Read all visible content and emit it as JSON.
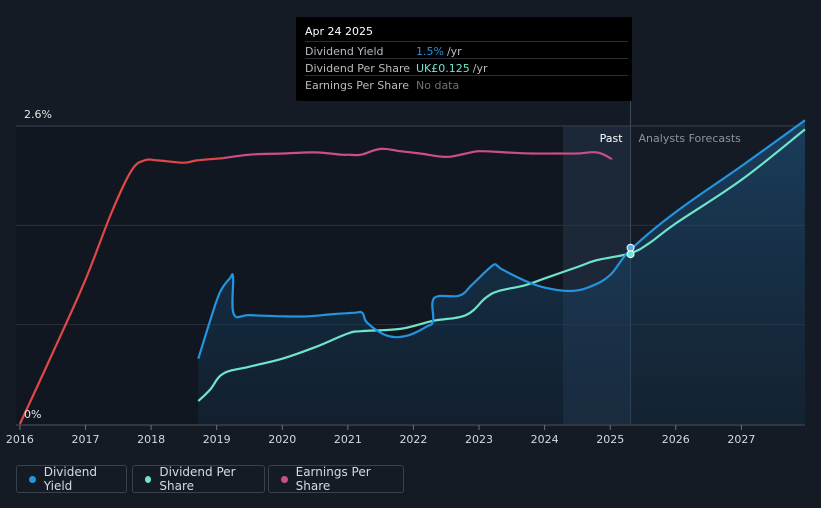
{
  "tooltip": {
    "date": "Apr 24 2025",
    "rows": [
      {
        "label": "Dividend Yield",
        "value": "1.5%",
        "unit": "/yr",
        "color": "#2394df"
      },
      {
        "label": "Dividend Per Share",
        "value": "UK£0.125",
        "unit": "/yr",
        "color": "#6fe5cb"
      },
      {
        "label": "Earnings Per Share",
        "value": "No data",
        "unit": "",
        "color": "#6e7379"
      }
    ]
  },
  "legend": [
    {
      "label": "Dividend Yield",
      "color": "#2394df"
    },
    {
      "label": "Dividend Per Share",
      "color": "#6fe5cb"
    },
    {
      "label": "Earnings Per Share",
      "color": "#cb4e88"
    }
  ],
  "chart_data": {
    "type": "line",
    "xlim": [
      2015.94,
      2027.97
    ],
    "ylim": [
      0,
      2.6
    ],
    "y_tick_labels": [
      "2.6%",
      "0%"
    ],
    "x_tick_labels": [
      "2016",
      "2017",
      "2018",
      "2019",
      "2020",
      "2021",
      "2022",
      "2023",
      "2024",
      "2025",
      "2026",
      "2027"
    ],
    "past_label": "Past",
    "forecast_label": "Analysts Forecasts",
    "today": 2025.31,
    "past_band_start": 2024.28,
    "colors": {
      "yield": "#2394df",
      "dps": "#6fe5cb",
      "eps": "#cb4e88",
      "eps_early": "#e04848"
    },
    "series": [
      {
        "name": "Earnings Per Share",
        "key": "eps",
        "points": [
          [
            2016.0,
            0.0
          ],
          [
            2016.5,
            0.62
          ],
          [
            2017.0,
            1.26
          ],
          [
            2017.4,
            1.85
          ],
          [
            2017.7,
            2.21
          ],
          [
            2017.9,
            2.3
          ],
          [
            2018.1,
            2.3
          ],
          [
            2018.5,
            2.28
          ],
          [
            2018.7,
            2.3
          ],
          [
            2019.1,
            2.32
          ],
          [
            2019.5,
            2.35
          ],
          [
            2020.0,
            2.36
          ],
          [
            2020.5,
            2.37
          ],
          [
            2020.9,
            2.35
          ],
          [
            2021.0,
            2.35
          ],
          [
            2021.2,
            2.35
          ],
          [
            2021.5,
            2.4
          ],
          [
            2021.8,
            2.38
          ],
          [
            2022.1,
            2.36
          ],
          [
            2022.5,
            2.33
          ],
          [
            2022.8,
            2.36
          ],
          [
            2023.0,
            2.38
          ],
          [
            2023.4,
            2.37
          ],
          [
            2023.8,
            2.36
          ],
          [
            2024.2,
            2.36
          ],
          [
            2024.5,
            2.36
          ],
          [
            2024.8,
            2.37
          ],
          [
            2025.0,
            2.32
          ],
          [
            2025.0,
            2.31
          ]
        ],
        "switch_x": 2019.1
      },
      {
        "name": "Dividend Yield",
        "key": "yield",
        "points": [
          [
            2018.72,
            0.57
          ],
          [
            2018.9,
            0.9
          ],
          [
            2019.05,
            1.15
          ],
          [
            2019.2,
            1.27
          ],
          [
            2019.25,
            1.28
          ],
          [
            2019.26,
            0.96
          ],
          [
            2019.5,
            0.95
          ],
          [
            2020.0,
            0.94
          ],
          [
            2020.4,
            0.94
          ],
          [
            2020.8,
            0.96
          ],
          [
            2021.1,
            0.97
          ],
          [
            2021.22,
            0.97
          ],
          [
            2021.3,
            0.88
          ],
          [
            2021.6,
            0.77
          ],
          [
            2021.9,
            0.77
          ],
          [
            2022.2,
            0.85
          ],
          [
            2022.3,
            0.9
          ],
          [
            2022.32,
            1.1
          ],
          [
            2022.7,
            1.12
          ],
          [
            2022.9,
            1.22
          ],
          [
            2023.2,
            1.38
          ],
          [
            2023.28,
            1.38
          ],
          [
            2023.35,
            1.35
          ],
          [
            2023.7,
            1.25
          ],
          [
            2024.0,
            1.19
          ],
          [
            2024.4,
            1.16
          ],
          [
            2024.7,
            1.2
          ],
          [
            2025.0,
            1.3
          ],
          [
            2025.31,
            1.52
          ],
          [
            2026.0,
            1.85
          ],
          [
            2027.0,
            2.25
          ],
          [
            2027.97,
            2.65
          ]
        ]
      },
      {
        "name": "Dividend Per Share",
        "key": "dps",
        "points": [
          [
            2018.72,
            0.2
          ],
          [
            2018.9,
            0.3
          ],
          [
            2019.1,
            0.44
          ],
          [
            2019.5,
            0.5
          ],
          [
            2020.0,
            0.57
          ],
          [
            2020.5,
            0.67
          ],
          [
            2021.0,
            0.79
          ],
          [
            2021.2,
            0.81
          ],
          [
            2021.8,
            0.83
          ],
          [
            2022.3,
            0.9
          ],
          [
            2022.8,
            0.95
          ],
          [
            2023.1,
            1.1
          ],
          [
            2023.3,
            1.16
          ],
          [
            2023.7,
            1.21
          ],
          [
            2024.0,
            1.27
          ],
          [
            2024.5,
            1.37
          ],
          [
            2024.8,
            1.43
          ],
          [
            2025.31,
            1.49
          ],
          [
            2025.6,
            1.58
          ],
          [
            2026.0,
            1.75
          ],
          [
            2027.0,
            2.13
          ],
          [
            2027.97,
            2.57
          ]
        ]
      }
    ]
  }
}
